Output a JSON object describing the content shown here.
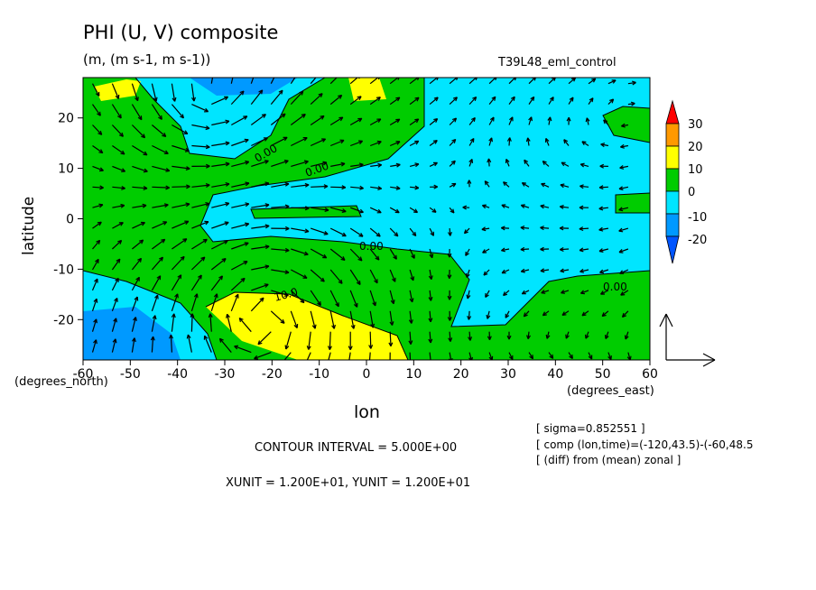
{
  "chart_data": {
    "type": "contour",
    "title": "PHI (U, V) composite",
    "units": "(m, (m s-1, m s-1))",
    "run_label": "T39L48_eml_control",
    "xlabel": "lon",
    "ylabel": "latitude",
    "x_unit_label": "(degrees_east)",
    "y_unit_label": "(degrees_north)",
    "xlim": [
      -60,
      60
    ],
    "ylim": [
      -28,
      28
    ],
    "x_ticks": [
      -60,
      -50,
      -40,
      -30,
      -20,
      -10,
      0,
      10,
      20,
      30,
      40,
      50,
      60
    ],
    "y_ticks": [
      -20,
      -10,
      0,
      10,
      20
    ],
    "contour_labels": [
      {
        "text": "0.00",
        "lon": -15,
        "lat": 15
      },
      {
        "text": "0.00",
        "lon": -8,
        "lat": 10
      },
      {
        "text": "0.00",
        "lon": 3,
        "lat": -6
      },
      {
        "text": "10.0",
        "lon": -22,
        "lat": -16
      },
      {
        "text": "0.00",
        "lon": 47,
        "lat": -14
      }
    ],
    "colorbar": {
      "levels": [
        "30",
        "20",
        "10",
        "0",
        "-10",
        "-20"
      ],
      "colors": [
        "#ff0000",
        "#ff9900",
        "#ffff00",
        "#00cc00",
        "#00e5ff",
        "#0099ff",
        "#0055ff"
      ]
    },
    "field_colors": {
      "positive_10_20": "#ffff00",
      "positive_0_10": "#00cc00",
      "negative_0_10": "#00e5ff",
      "negative_10_20": "#0099ff"
    },
    "vector_scale": {
      "xunit": "1.200E+01",
      "yunit": "1.200E+01"
    }
  },
  "contour_interval": "CONTOUR INTERVAL = 5.000E+00",
  "unit_line": "XUNIT = 1.200E+01, YUNIT = 1.200E+01",
  "notes": [
    "[ sigma=0.852551 ]",
    "[ comp (lon,time)=(-120,43.5)-(-60,48.5",
    "[ (diff) from (mean) zonal ]"
  ]
}
